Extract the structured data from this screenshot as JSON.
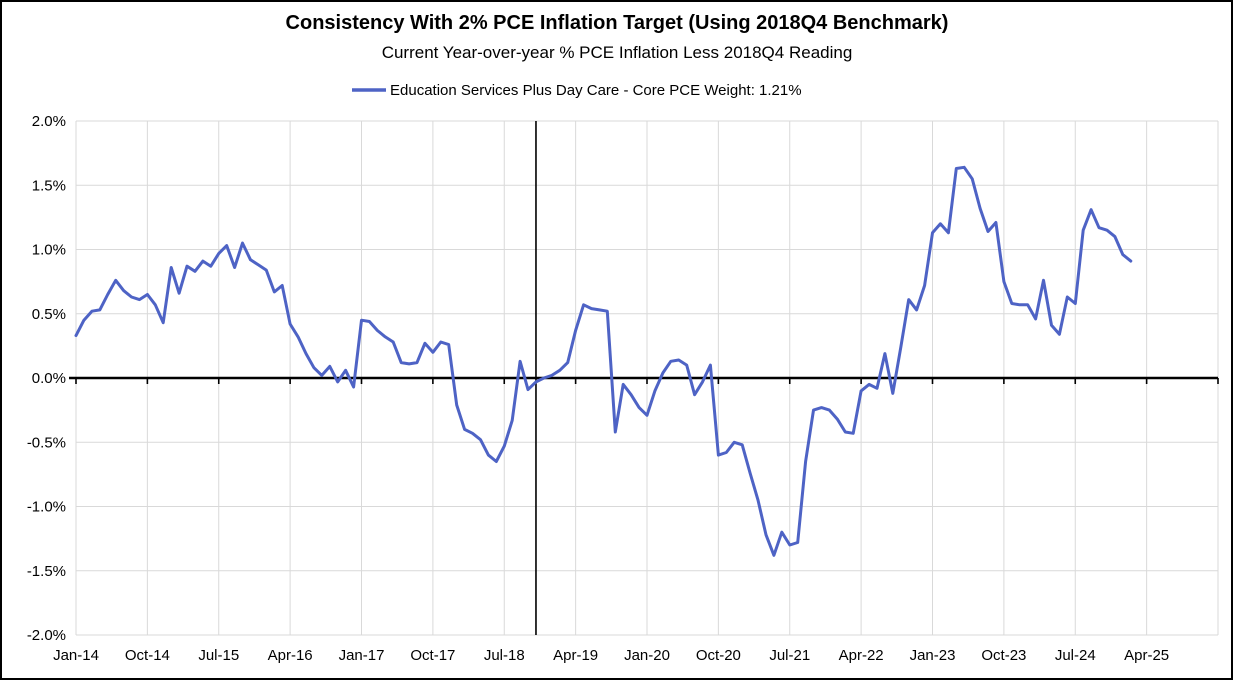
{
  "chart_data": {
    "type": "line",
    "title": "Consistency With 2% PCE Inflation Target (Using 2018Q4 Benchmark)",
    "subtitle": "Current Year-over-year % PCE Inflation Less 2018Q4 Reading",
    "legend": {
      "label": "Education Services Plus Day Care  - Core PCE Weight: 1.21%",
      "position": "top"
    },
    "x_axis": {
      "tick_labels": [
        "Jan-14",
        "Oct-14",
        "Jul-15",
        "Apr-16",
        "Jan-17",
        "Oct-17",
        "Jul-18",
        "Apr-19",
        "Jan-20",
        "Oct-20",
        "Jul-21",
        "Apr-22",
        "Jan-23",
        "Oct-23",
        "Jul-24",
        "Apr-25"
      ],
      "tick_interval_months": 9,
      "domain_months": 144,
      "start_month": "Jan-2014"
    },
    "y_axis": {
      "tick_labels": [
        "2.0%",
        "1.5%",
        "1.0%",
        "0.5%",
        "0.0%",
        "-0.5%",
        "-1.0%",
        "-1.5%",
        "-2.0%"
      ],
      "min": -2.0,
      "max": 2.0,
      "step": 0.5,
      "unit": "percent"
    },
    "annotations": {
      "benchmark_vline_month": "Nov-18",
      "benchmark_vline_t_months_from_start": 58
    },
    "grid": true,
    "colors": {
      "series": "#4e63c5",
      "gridline": "#d9d9d9",
      "axis": "#000000",
      "background": "#ffffff"
    },
    "series": [
      {
        "name": "Education Services Plus Day Care",
        "core_pce_weight": "1.21%",
        "color": "#4e63c5",
        "start_month": "Jan-2014",
        "end_month": "Feb-2025",
        "frequency": "monthly",
        "values": [
          0.33,
          0.45,
          0.52,
          0.53,
          0.65,
          0.76,
          0.68,
          0.63,
          0.61,
          0.65,
          0.57,
          0.43,
          0.86,
          0.66,
          0.87,
          0.83,
          0.91,
          0.87,
          0.97,
          1.03,
          0.86,
          1.05,
          0.92,
          0.88,
          0.84,
          0.67,
          0.72,
          0.42,
          0.32,
          0.19,
          0.08,
          0.02,
          0.09,
          -0.03,
          0.06,
          -0.07,
          0.45,
          0.44,
          0.37,
          0.32,
          0.28,
          0.12,
          0.11,
          0.12,
          0.27,
          0.2,
          0.28,
          0.26,
          -0.21,
          -0.4,
          -0.43,
          -0.48,
          -0.6,
          -0.65,
          -0.53,
          -0.33,
          0.13,
          -0.09,
          -0.03,
          0.0,
          0.02,
          0.06,
          0.12,
          0.37,
          0.57,
          0.54,
          0.53,
          0.52,
          -0.42,
          -0.05,
          -0.13,
          -0.23,
          -0.29,
          -0.1,
          0.04,
          0.13,
          0.14,
          0.1,
          -0.13,
          -0.03,
          0.1,
          -0.6,
          -0.58,
          -0.5,
          -0.52,
          -0.74,
          -0.95,
          -1.22,
          -1.38,
          -1.2,
          -1.3,
          -1.28,
          -0.65,
          -0.25,
          -0.23,
          -0.25,
          -0.32,
          -0.42,
          -0.43,
          -0.1,
          -0.05,
          -0.08,
          0.19,
          -0.12,
          0.24,
          0.61,
          0.53,
          0.72,
          1.13,
          1.2,
          1.13,
          1.63,
          1.64,
          1.55,
          1.32,
          1.14,
          1.21,
          0.75,
          0.58,
          0.57,
          0.57,
          0.46,
          0.76,
          0.41,
          0.34,
          0.63,
          0.58,
          1.15,
          1.31,
          1.17,
          1.15,
          1.1,
          0.96,
          0.91
        ]
      }
    ]
  }
}
